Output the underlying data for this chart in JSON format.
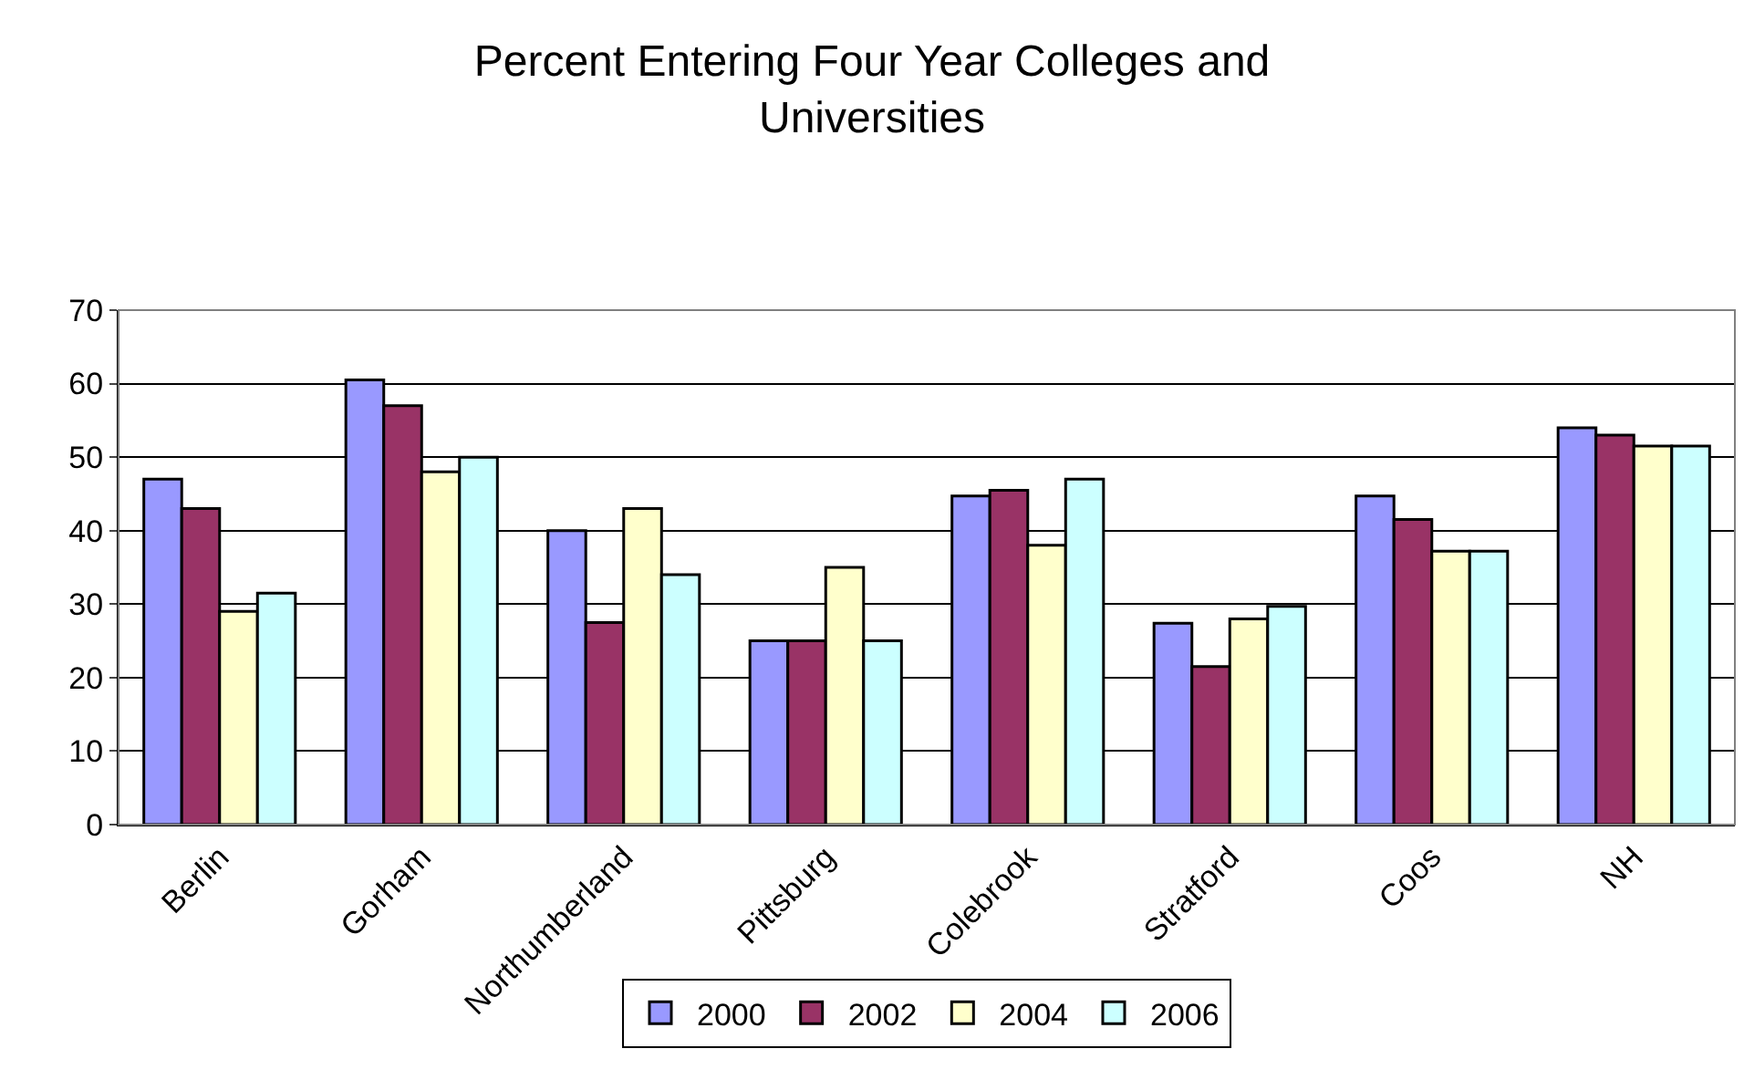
{
  "chart_data": {
    "type": "bar",
    "title": "Percent Entering Four Year Colleges and Universities",
    "categories": [
      "Berlin",
      "Gorham",
      "Northumberland",
      "Pittsburg",
      "Colebrook",
      "Stratford",
      "Coos",
      "NH"
    ],
    "series": [
      {
        "name": "2000",
        "color": "#9999ff",
        "values": [
          47,
          60.5,
          40,
          25,
          44.7,
          27.4,
          44.7,
          54
        ]
      },
      {
        "name": "2002",
        "color": "#993366",
        "values": [
          43,
          57,
          27.5,
          25,
          45.5,
          21.5,
          41.5,
          53
        ]
      },
      {
        "name": "2004",
        "color": "#ffffcc",
        "values": [
          29,
          48,
          43,
          35,
          38,
          28,
          37.2,
          51.5
        ]
      },
      {
        "name": "2006",
        "color": "#ccffff",
        "values": [
          31.5,
          50,
          34,
          25,
          47,
          29.7,
          37.2,
          51.5
        ]
      }
    ],
    "ylim": [
      0,
      70
    ],
    "yticks": [
      0,
      10,
      20,
      30,
      40,
      50,
      60,
      70
    ],
    "grid": "y",
    "legend": "bottom"
  }
}
